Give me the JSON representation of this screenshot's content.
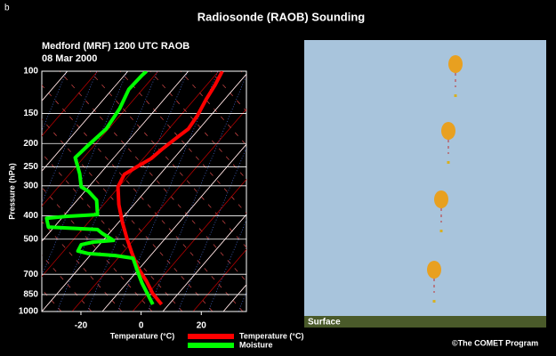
{
  "panel_label": "b",
  "title": "Radiosonde (RAOB) Sounding",
  "surface_label": "Surface",
  "credit": "©The COMET Program",
  "chart_data": {
    "type": "line",
    "title": "Medford (MRF) 1200 UTC RAOB",
    "subtitle": "08 Mar 2000",
    "x_label": "Temperature (°C)",
    "y_label": "Pressure (hPa)",
    "xlim": [
      -33,
      35
    ],
    "xticks": [
      -20,
      0,
      20
    ],
    "ylim": [
      1000,
      100
    ],
    "yticks": [
      100,
      150,
      200,
      250,
      300,
      400,
      500,
      700,
      850,
      1000
    ],
    "ylog": true,
    "grid": true,
    "series": [
      {
        "name": "Temperature (°C)",
        "color": "#ff0000",
        "x": [
          6.8,
          3.9,
          1.8,
          -1.2,
          -3,
          -4.7,
          -6.2,
          -7.4,
          -7.7,
          -5.6,
          -1.2,
          3.3,
          6.8,
          11.6,
          15.7,
          18.7,
          21.6,
          24.6,
          27
        ],
        "y": [
          934,
          843,
          748,
          653,
          574,
          497,
          426,
          359,
          303,
          269,
          249,
          231,
          212,
          190,
          174,
          153,
          131,
          114,
          100
        ]
      },
      {
        "name": "Moisture",
        "color": "#00ff00",
        "x": [
          3.9,
          2.1,
          0.3,
          -1.2,
          -2.7,
          -8.6,
          -17.5,
          -21,
          -19.9,
          -16,
          -9.2,
          -13,
          -14.5,
          -24.9,
          -30.8,
          -31.4,
          -24.9,
          -14.5,
          -14.8,
          -17.5,
          -19.9,
          -20.4,
          -21.9,
          -17.5,
          -11.6,
          -7.1,
          -4.1,
          0.3,
          1.8
        ],
        "y": [
          934,
          843,
          761,
          681,
          600,
          585,
          574,
          560,
          527,
          514,
          506,
          472,
          456,
          449,
          445,
          409,
          402,
          395,
          344,
          316,
          303,
          267,
          229,
          203,
          174,
          143,
          119,
          104,
          100
        ]
      }
    ]
  }
}
